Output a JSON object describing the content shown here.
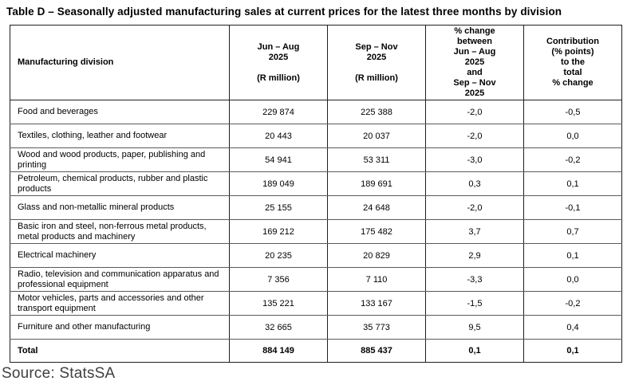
{
  "page": {
    "title": "Table D – Seasonally adjusted manufacturing sales at current prices for the latest three months by division",
    "source": "Source: StatsSA"
  },
  "table": {
    "headers": {
      "division": "Manufacturing division",
      "jun_aug": "Jun – Aug\n2025\n\n(R million)",
      "sep_nov": "Sep – Nov\n2025\n\n(R million)",
      "pct_change": "% change\nbetween\nJun – Aug\n2025\nand\nSep – Nov\n2025",
      "contribution": "Contribution\n(% points)\nto the\ntotal\n% change"
    },
    "rows": [
      {
        "division": "Food and beverages",
        "jun_aug": "229 874",
        "sep_nov": "225 388",
        "pct_change": "-2,0",
        "contribution": "-0,5"
      },
      {
        "division": "Textiles, clothing, leather and footwear",
        "jun_aug": "20 443",
        "sep_nov": "20 037",
        "pct_change": "-2,0",
        "contribution": "0,0"
      },
      {
        "division": "Wood and wood products, paper, publishing and printing",
        "jun_aug": "54 941",
        "sep_nov": "53 311",
        "pct_change": "-3,0",
        "contribution": "-0,2"
      },
      {
        "division": "Petroleum, chemical products, rubber and plastic products",
        "jun_aug": "189 049",
        "sep_nov": "189 691",
        "pct_change": "0,3",
        "contribution": "0,1"
      },
      {
        "division": "Glass and non-metallic mineral products",
        "jun_aug": "25 155",
        "sep_nov": "24 648",
        "pct_change": "-2,0",
        "contribution": "-0,1"
      },
      {
        "division": "Basic iron and steel, non-ferrous metal products, metal products and machinery",
        "jun_aug": "169 212",
        "sep_nov": "175 482",
        "pct_change": "3,7",
        "contribution": "0,7"
      },
      {
        "division": "Electrical machinery",
        "jun_aug": "20 235",
        "sep_nov": "20 829",
        "pct_change": "2,9",
        "contribution": "0,1"
      },
      {
        "division": "Radio, television and communication apparatus and professional equipment",
        "jun_aug": "7 356",
        "sep_nov": "7 110",
        "pct_change": "-3,3",
        "contribution": "0,0"
      },
      {
        "division": "Motor vehicles, parts and accessories and other transport equipment",
        "jun_aug": "135 221",
        "sep_nov": "133 167",
        "pct_change": "-1,5",
        "contribution": "-0,2"
      },
      {
        "division": "Furniture and other manufacturing",
        "jun_aug": "32 665",
        "sep_nov": "35 773",
        "pct_change": "9,5",
        "contribution": "0,4"
      }
    ],
    "total": {
      "division": "Total",
      "jun_aug": "884 149",
      "sep_nov": "885 437",
      "pct_change": "0,1",
      "contribution": "0,1"
    }
  },
  "colors": {
    "border_dark": "#1f1f1f",
    "row_line": "#5a5a5a",
    "text": "#000000",
    "source_text": "#3f3f3f"
  }
}
